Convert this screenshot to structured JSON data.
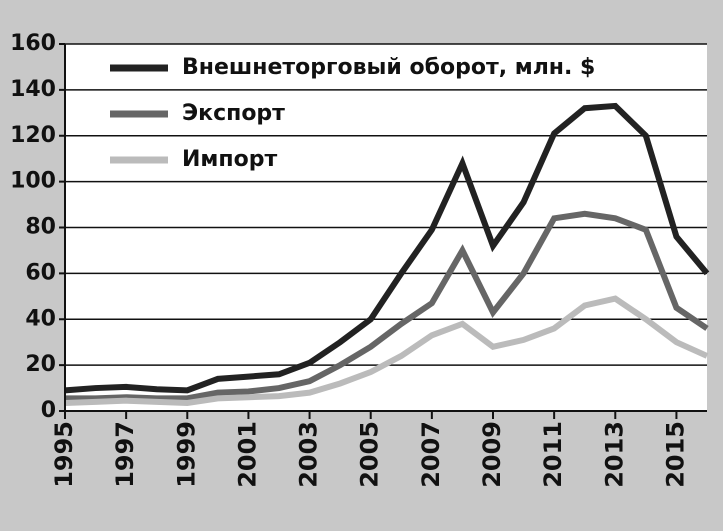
{
  "chart_data": {
    "type": "line",
    "x": [
      1995,
      1996,
      1997,
      1998,
      1999,
      2000,
      2001,
      2002,
      2003,
      2004,
      2005,
      2006,
      2007,
      2008,
      2009,
      2010,
      2011,
      2012,
      2013,
      2014,
      2015,
      2016
    ],
    "series": [
      {
        "name": "Внешнеторговый оборот, млн. $",
        "color": "#222222",
        "values": [
          9,
          10,
          10.5,
          9.5,
          9,
          14,
          15,
          16,
          21,
          30,
          40,
          60,
          79,
          108,
          72,
          91,
          121,
          132,
          133,
          120,
          76,
          60
        ]
      },
      {
        "name": "Экспорт",
        "color": "#666666",
        "values": [
          5.5,
          5.5,
          6,
          5.5,
          5.5,
          8,
          8.5,
          10,
          13,
          20,
          28,
          38,
          47,
          70,
          43,
          60,
          84,
          86,
          84,
          79,
          45,
          36
        ]
      },
      {
        "name": "Импорт",
        "color": "#bbbbbb",
        "values": [
          3.5,
          4,
          4.5,
          4,
          3.5,
          5.5,
          6,
          6.5,
          8,
          12,
          17,
          24,
          33,
          38,
          28,
          31,
          36,
          46,
          49,
          40,
          30,
          24
        ]
      }
    ],
    "xlim": [
      1995,
      2016
    ],
    "xticks": [
      1995,
      1997,
      1999,
      2001,
      2003,
      2005,
      2007,
      2009,
      2011,
      2013,
      2015
    ],
    "ylim": [
      0,
      160
    ],
    "yticks": [
      0,
      20,
      40,
      60,
      80,
      100,
      120,
      140,
      160
    ],
    "grid": true,
    "legend": "top-left"
  }
}
